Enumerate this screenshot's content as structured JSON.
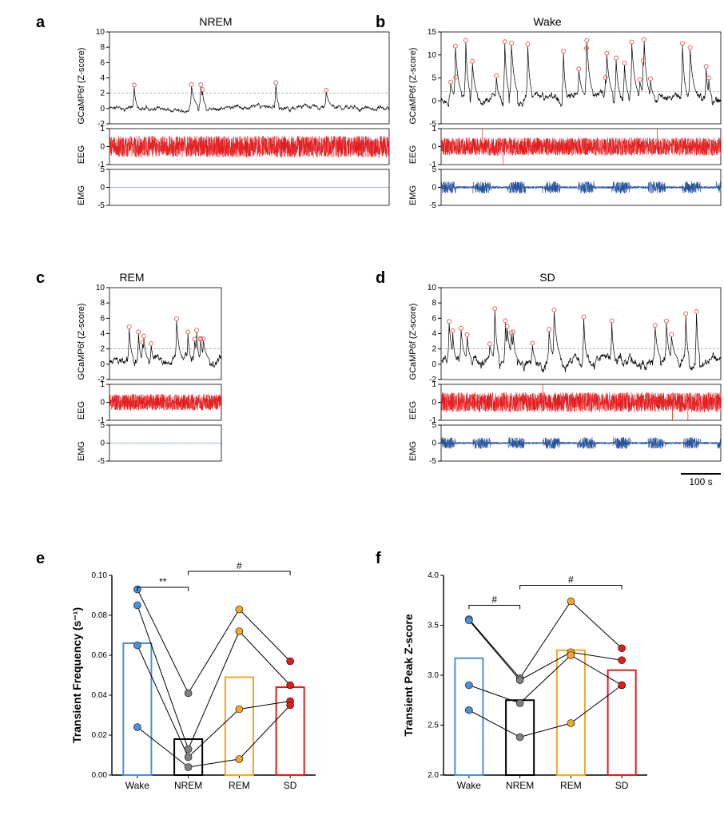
{
  "panels": {
    "a": {
      "label": "a",
      "title": "NREM"
    },
    "b": {
      "label": "b",
      "title": "Wake"
    },
    "c": {
      "label": "c",
      "title": "REM"
    },
    "d": {
      "label": "d",
      "title": "SD"
    },
    "e": {
      "label": "e"
    },
    "f": {
      "label": "f"
    }
  },
  "trace_labels": {
    "gcamp": "GCaMP6f (Z-score)",
    "eeg": "EEG",
    "emg": "EMG"
  },
  "trace_colors": {
    "gcamp": "#000000",
    "eeg": "#e41a1c",
    "emg": "#1f4e9c",
    "peak_marker": "#e06666"
  },
  "gcamp_axes": {
    "a": {
      "ymin": -2,
      "ymax": 10,
      "ticks": [
        -2,
        0,
        2,
        4,
        6,
        8,
        10
      ]
    },
    "b": {
      "ymin": -5,
      "ymax": 15,
      "ticks": [
        -5,
        0,
        5,
        10,
        15
      ]
    },
    "c": {
      "ymin": -2,
      "ymax": 10,
      "ticks": [
        -2,
        0,
        2,
        4,
        6,
        8,
        10
      ]
    },
    "d": {
      "ymin": -2,
      "ymax": 10,
      "ticks": [
        -2,
        0,
        2,
        4,
        6,
        8,
        10
      ]
    }
  },
  "eeg_axes": {
    "ymin": -1,
    "ymax": 1,
    "ticks": [
      -1,
      0,
      1
    ]
  },
  "emg_axes": {
    "ymin": -5,
    "ymax": 5,
    "ticks": [
      -5,
      0,
      5
    ]
  },
  "threshold": 2,
  "time_length": {
    "a": 700,
    "b": 700,
    "c": 280,
    "d": 700
  },
  "scalebar": {
    "label": "100 s",
    "length": 100
  },
  "bar_charts": {
    "e": {
      "ylabel": "Transient Frequency (s⁻¹)",
      "ymin": 0,
      "ymax": 0.1,
      "yticks": [
        0.0,
        0.02,
        0.04,
        0.06,
        0.08,
        0.1
      ],
      "categories": [
        "Wake",
        "NREM",
        "REM",
        "SD"
      ],
      "bar_values": [
        0.066,
        0.018,
        0.049,
        0.044
      ],
      "bar_colors": [
        "#4a90d9",
        "#000000",
        "#f5a623",
        "#e41a1c"
      ],
      "points": {
        "Wake": [
          0.093,
          0.085,
          0.065,
          0.024
        ],
        "NREM": [
          0.041,
          0.013,
          0.009,
          0.004
        ],
        "REM": [
          0.083,
          0.072,
          0.033,
          0.008
        ],
        "SD": [
          0.057,
          0.045,
          0.037,
          0.035
        ]
      },
      "point_colors": {
        "Wake": "#4a90d9",
        "NREM": "#808080",
        "REM": "#f5a623",
        "SD": "#e41a1c"
      },
      "sig": [
        {
          "from": "Wake",
          "to": "NREM",
          "label": "**",
          "y": 0.094
        },
        {
          "from": "NREM",
          "to": "SD",
          "label": "#",
          "y": 0.102
        }
      ]
    },
    "f": {
      "ylabel": "Transient Peak Z-score",
      "ymin": 2.0,
      "ymax": 4.0,
      "yticks": [
        2.0,
        2.5,
        3.0,
        3.5,
        4.0
      ],
      "categories": [
        "Wake",
        "NREM",
        "REM",
        "SD"
      ],
      "bar_values": [
        3.17,
        2.75,
        3.25,
        3.05
      ],
      "bar_colors": [
        "#4a90d9",
        "#000000",
        "#f5a623",
        "#e41a1c"
      ],
      "points": {
        "Wake": [
          3.56,
          3.55,
          2.9,
          2.65
        ],
        "NREM": [
          2.97,
          2.95,
          2.72,
          2.38
        ],
        "REM": [
          3.74,
          3.23,
          3.2,
          2.52
        ],
        "SD": [
          3.27,
          3.15,
          2.9,
          2.9
        ]
      },
      "point_colors": {
        "Wake": "#4a90d9",
        "NREM": "#808080",
        "REM": "#f5a623",
        "SD": "#e41a1c"
      },
      "sig": [
        {
          "from": "Wake",
          "to": "NREM",
          "label": "#",
          "y": 3.7
        },
        {
          "from": "NREM",
          "to": "SD",
          "label": "#",
          "y": 3.9
        }
      ]
    }
  },
  "layout": {
    "col1_x": 45,
    "col2_x": 470,
    "row_ab_y": 22,
    "row_cd_y": 342,
    "row_ef_y": 690,
    "trace_panel_w_full": 350,
    "trace_panel_w_short": 140,
    "gcamp_h": 115,
    "eeg_h": 45,
    "emg_h": 45,
    "gap1": 6,
    "gap2": 6,
    "bar_panel_w": 320,
    "bar_panel_h": 300
  },
  "seeds": {
    "a": 11,
    "b": 22,
    "c": 33,
    "d": 44
  },
  "profiles": {
    "a": {
      "base": 0.1,
      "amp": 0.6,
      "peaks": 6,
      "peak_amp": [
        2,
        3.2
      ],
      "emg_amp": 0.15,
      "eeg_amp": 0.6
    },
    "b": {
      "base": 0.5,
      "amp": 2.0,
      "peaks": 26,
      "peak_amp": [
        2,
        13
      ],
      "emg_amp": 1.7,
      "eeg_amp": 0.5
    },
    "c": {
      "base": 0.3,
      "amp": 1.2,
      "peaks": 12,
      "peak_amp": [
        2,
        5.8
      ],
      "emg_amp": 0.15,
      "eeg_amp": 0.45
    },
    "d": {
      "base": 0.4,
      "amp": 1.5,
      "peaks": 20,
      "peak_amp": [
        2,
        6.8
      ],
      "emg_amp": 1.6,
      "eeg_amp": 0.55
    }
  }
}
